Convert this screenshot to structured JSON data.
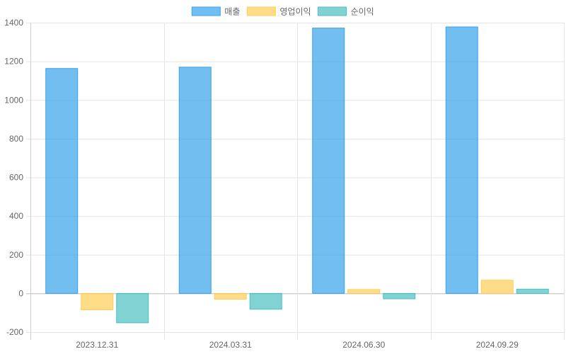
{
  "chart_data": {
    "type": "bar",
    "categories": [
      "2023.12.31",
      "2024.03.31",
      "2024.06.30",
      "2024.09.29"
    ],
    "series": [
      {
        "name": "매출",
        "values": [
          1163,
          1170,
          1372,
          1378
        ],
        "color": "#36a2eb"
      },
      {
        "name": "영업이익",
        "values": [
          -85,
          -30,
          20,
          68
        ],
        "color": "#ffcd56"
      },
      {
        "name": "순이익",
        "values": [
          -152,
          -82,
          -28,
          22
        ],
        "color": "#4bc0c0"
      }
    ],
    "ylim": [
      -200,
      1400
    ],
    "yticks": [
      -200,
      0,
      200,
      400,
      600,
      800,
      1000,
      1200,
      1400
    ],
    "grid": true,
    "legend": "top-center",
    "title": "",
    "xlabel": "",
    "ylabel": ""
  }
}
